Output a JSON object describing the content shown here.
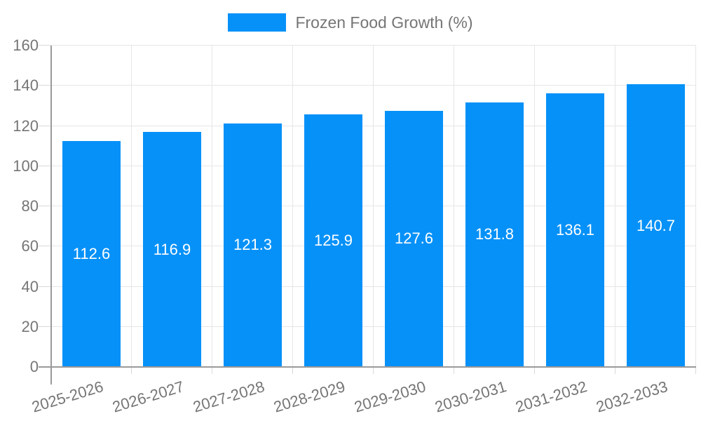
{
  "chart_data": {
    "type": "bar",
    "title": "",
    "series_name": "Frozen Food Growth (%)",
    "categories": [
      "2025-2026",
      "2026-2027",
      "2027-2028",
      "2028-2029",
      "2029-2030",
      "2030-2031",
      "2031-2032",
      "2032-2033"
    ],
    "values": [
      112.6,
      116.9,
      121.3,
      125.9,
      127.6,
      131.8,
      136.1,
      140.7
    ],
    "value_labels": [
      "112.6",
      "116.9",
      "121.3",
      "125.9",
      "127.6",
      "131.8",
      "136.1",
      "140.7"
    ],
    "xlabel": "",
    "ylabel": "",
    "ylim": [
      0,
      160
    ],
    "ytick_step": 20,
    "ytick_labels": [
      "0",
      "20",
      "40",
      "60",
      "80",
      "100",
      "120",
      "140",
      "160"
    ],
    "grid": true,
    "legend_position": "top-center",
    "bar_color": "#0691f8",
    "bar_label_color": "#ffffff",
    "axis_text_color": "#757575"
  }
}
